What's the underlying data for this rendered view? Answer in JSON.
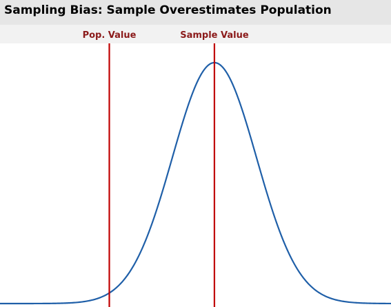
{
  "chart_data": {
    "type": "line",
    "title": "Sampling Bias: Sample Overestimates Population",
    "xlabel": "",
    "ylabel": "",
    "xlim": [
      -4.1,
      5.2
    ],
    "ylim": [
      0,
      1.08
    ],
    "grid": false,
    "legend": "none",
    "series": [
      {
        "curve": "normal-density",
        "mean": 1,
        "sd": 1,
        "color": "#1f5fa8"
      }
    ],
    "reference_lines": [
      {
        "label": "Pop. Value",
        "x": -1.5,
        "color": "#c00000",
        "label_color": "#8b1a1a"
      },
      {
        "label": "Sample Value",
        "x": 1,
        "color": "#c00000",
        "label_color": "#8b1a1a"
      }
    ]
  }
}
